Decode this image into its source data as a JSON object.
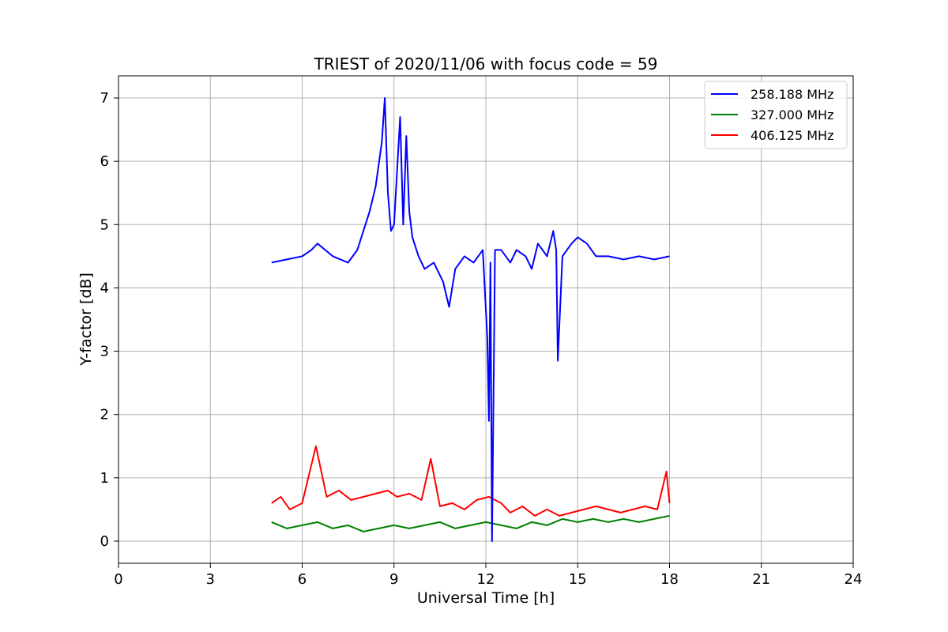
{
  "chart_data": {
    "type": "line",
    "title": "TRIEST of 2020/11/06 with focus code = 59",
    "xlabel": "Universal Time [h]",
    "ylabel": "Y-factor [dB]",
    "xlim": [
      0,
      24
    ],
    "ylim": [
      -0.35,
      7.35
    ],
    "xticks": [
      0,
      3,
      6,
      9,
      12,
      15,
      18,
      21,
      24
    ],
    "yticks": [
      0,
      1,
      2,
      3,
      4,
      5,
      6,
      7
    ],
    "grid": true,
    "legend_position": "top-right",
    "series": [
      {
        "name": "258.188 MHz",
        "color": "#0000ff",
        "x": [
          5.0,
          5.5,
          6.0,
          6.3,
          6.5,
          7.0,
          7.5,
          7.8,
          8.0,
          8.2,
          8.4,
          8.6,
          8.7,
          8.8,
          8.9,
          9.0,
          9.2,
          9.3,
          9.4,
          9.5,
          9.6,
          9.8,
          10.0,
          10.3,
          10.6,
          10.8,
          11.0,
          11.3,
          11.6,
          11.9,
          12.05,
          12.1,
          12.15,
          12.2,
          12.3,
          12.5,
          12.8,
          13.0,
          13.3,
          13.5,
          13.7,
          14.0,
          14.2,
          14.3,
          14.35,
          14.5,
          14.8,
          15.0,
          15.3,
          15.6,
          16.0,
          16.5,
          17.0,
          17.5,
          18.0
        ],
        "y": [
          4.4,
          4.45,
          4.5,
          4.6,
          4.7,
          4.5,
          4.4,
          4.6,
          4.9,
          5.2,
          5.6,
          6.3,
          7.0,
          5.5,
          4.9,
          5.0,
          6.7,
          5.0,
          6.4,
          5.2,
          4.8,
          4.5,
          4.3,
          4.4,
          4.1,
          3.7,
          4.3,
          4.5,
          4.4,
          4.6,
          3.2,
          1.9,
          4.4,
          0.0,
          4.6,
          4.6,
          4.4,
          4.6,
          4.5,
          4.3,
          4.7,
          4.5,
          4.9,
          4.6,
          2.85,
          4.5,
          4.7,
          4.8,
          4.7,
          4.5,
          4.5,
          4.45,
          4.5,
          4.45,
          4.5
        ]
      },
      {
        "name": "327.000 MHz",
        "color": "#008000",
        "x": [
          5.0,
          5.5,
          6.0,
          6.5,
          7.0,
          7.5,
          8.0,
          8.5,
          9.0,
          9.5,
          10.0,
          10.5,
          11.0,
          11.5,
          12.0,
          12.5,
          13.0,
          13.5,
          14.0,
          14.5,
          15.0,
          15.5,
          16.0,
          16.5,
          17.0,
          17.5,
          18.0
        ],
        "y": [
          0.3,
          0.2,
          0.25,
          0.3,
          0.2,
          0.25,
          0.15,
          0.2,
          0.25,
          0.2,
          0.25,
          0.3,
          0.2,
          0.25,
          0.3,
          0.25,
          0.2,
          0.3,
          0.25,
          0.35,
          0.3,
          0.35,
          0.3,
          0.35,
          0.3,
          0.35,
          0.4
        ]
      },
      {
        "name": "406.125 MHz",
        "color": "#ff0000",
        "x": [
          5.0,
          5.3,
          5.6,
          6.0,
          6.45,
          6.8,
          7.2,
          7.6,
          8.0,
          8.4,
          8.8,
          9.1,
          9.5,
          9.9,
          10.2,
          10.5,
          10.9,
          11.3,
          11.7,
          12.1,
          12.5,
          12.8,
          13.2,
          13.6,
          14.0,
          14.4,
          14.8,
          15.2,
          15.6,
          16.0,
          16.4,
          16.8,
          17.2,
          17.6,
          17.9,
          18.0
        ],
        "y": [
          0.6,
          0.7,
          0.5,
          0.6,
          1.5,
          0.7,
          0.8,
          0.65,
          0.7,
          0.75,
          0.8,
          0.7,
          0.75,
          0.65,
          1.3,
          0.55,
          0.6,
          0.5,
          0.65,
          0.7,
          0.6,
          0.45,
          0.55,
          0.4,
          0.5,
          0.4,
          0.45,
          0.5,
          0.55,
          0.5,
          0.45,
          0.5,
          0.55,
          0.5,
          1.1,
          0.6
        ]
      }
    ]
  }
}
